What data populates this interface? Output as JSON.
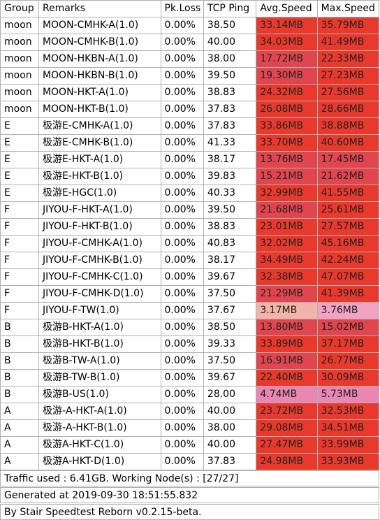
{
  "header": {
    "group": "Group",
    "remarks": "Remarks",
    "loss": "Pk.Loss",
    "ping": "TCP Ping",
    "avg": "Avg.Speed",
    "max": "Max.Speed"
  },
  "rows": [
    {
      "group": "moon",
      "remarks": "MOON-CMHK-A(1.0)",
      "loss": "0.00%",
      "ping": "38.50",
      "avg": "33.14MB",
      "max": "35.79MB"
    },
    {
      "group": "moon",
      "remarks": "MOON-CMHK-B(1.0)",
      "loss": "0.00%",
      "ping": "40.00",
      "avg": "34.03MB",
      "max": "41.49MB"
    },
    {
      "group": "moon",
      "remarks": "MOON-HKBN-A(1.0)",
      "loss": "0.00%",
      "ping": "38.00",
      "avg": "17.72MB",
      "max": "22.33MB"
    },
    {
      "group": "moon",
      "remarks": "MOON-HKBN-B(1.0)",
      "loss": "0.00%",
      "ping": "39.50",
      "avg": "19.30MB",
      "max": "27.23MB"
    },
    {
      "group": "moon",
      "remarks": "MOON-HKT-A(1.0)",
      "loss": "0.00%",
      "ping": "38.83",
      "avg": "24.32MB",
      "max": "27.56MB"
    },
    {
      "group": "moon",
      "remarks": "MOON-HKT-B(1.0)",
      "loss": "0.00%",
      "ping": "37.83",
      "avg": "26.08MB",
      "max": "28.66MB"
    },
    {
      "group": "E",
      "remarks": "极游E-CMHK-A(1.0)",
      "loss": "0.00%",
      "ping": "37.83",
      "avg": "33.86MB",
      "max": "38.88MB"
    },
    {
      "group": "E",
      "remarks": "极游E-CMHK-B(1.0)",
      "loss": "0.00%",
      "ping": "41.33",
      "avg": "33.70MB",
      "max": "40.60MB"
    },
    {
      "group": "E",
      "remarks": "极游E-HKT-A(1.0)",
      "loss": "0.00%",
      "ping": "38.17",
      "avg": "13.76MB",
      "max": "17.45MB"
    },
    {
      "group": "E",
      "remarks": "极游E-HKT-B(1.0)",
      "loss": "0.00%",
      "ping": "39.83",
      "avg": "15.21MB",
      "max": "21.62MB"
    },
    {
      "group": "E",
      "remarks": "极游E-HGC(1.0)",
      "loss": "0.00%",
      "ping": "40.33",
      "avg": "32.99MB",
      "max": "41.55MB"
    },
    {
      "group": "F",
      "remarks": "JIYOU-F-HKT-A(1.0)",
      "loss": "0.00%",
      "ping": "39.50",
      "avg": "21.68MB",
      "max": "25.61MB"
    },
    {
      "group": "F",
      "remarks": "JIYOU-F-HKT-B(1.0)",
      "loss": "0.00%",
      "ping": "38.83",
      "avg": "23.01MB",
      "max": "27.57MB"
    },
    {
      "group": "F",
      "remarks": "JIYOU-F-CMHK-A(1.0)",
      "loss": "0.00%",
      "ping": "40.83",
      "avg": "32.02MB",
      "max": "45.16MB"
    },
    {
      "group": "F",
      "remarks": "JIYOU-F-CMHK-B(1.0)",
      "loss": "0.00%",
      "ping": "38.17",
      "avg": "34.49MB",
      "max": "42.24MB"
    },
    {
      "group": "F",
      "remarks": "JIYOU-F-CMHK-C(1.0)",
      "loss": "0.00%",
      "ping": "39.67",
      "avg": "32.38MB",
      "max": "47.07MB"
    },
    {
      "group": "F",
      "remarks": "JIYOU-F-CMHK-D(1.0)",
      "loss": "0.00%",
      "ping": "37.50",
      "avg": "21.29MB",
      "max": "41.39MB"
    },
    {
      "group": "F",
      "remarks": "JIYOU-F-TW(1.0)",
      "loss": "0.00%",
      "ping": "37.67",
      "avg": "3.17MB",
      "max": "3.76MB"
    },
    {
      "group": "B",
      "remarks": "极游B-HKT-A(1.0)",
      "loss": "0.00%",
      "ping": "38.50",
      "avg": "13.80MB",
      "max": "15.02MB"
    },
    {
      "group": "B",
      "remarks": "极游B-HKT-B(1.0)",
      "loss": "0.00%",
      "ping": "39.33",
      "avg": "33.89MB",
      "max": "37.17MB"
    },
    {
      "group": "B",
      "remarks": "极游B-TW-A(1.0)",
      "loss": "0.00%",
      "ping": "37.50",
      "avg": "16.91MB",
      "max": "26.77MB"
    },
    {
      "group": "B",
      "remarks": "极游B-TW-B(1.0)",
      "loss": "0.00%",
      "ping": "39.67",
      "avg": "22.40MB",
      "max": "30.09MB"
    },
    {
      "group": "B",
      "remarks": "极游B-US(1.0)",
      "loss": "0.00%",
      "ping": "28.00",
      "avg": "4.74MB",
      "max": "5.73MB"
    },
    {
      "group": "A",
      "remarks": "极游-A-HKT-A(1.0)",
      "loss": "0.00%",
      "ping": "40.00",
      "avg": "23.72MB",
      "max": "32.53MB"
    },
    {
      "group": "A",
      "remarks": "极游-A-HKT-B(1.0)",
      "loss": "0.00%",
      "ping": "38.00",
      "avg": "29.08MB",
      "max": "34.51MB"
    },
    {
      "group": "A",
      "remarks": "极游A-HKT-C(1.0)",
      "loss": "0.00%",
      "ping": "40.00",
      "avg": "27.47MB",
      "max": "33.99MB"
    },
    {
      "group": "A",
      "remarks": "极游A-HKT-D(1.0)",
      "loss": "0.00%",
      "ping": "37.83",
      "avg": "24.98MB",
      "max": "33.93MB"
    }
  ],
  "footer": {
    "traffic": "Traffic used : 6.41GB. Working Node(s) : [27/27]",
    "generated": "Generated at 2019-09-30 18:51:55.832",
    "by": "By Stair Speedtest Reborn v0.2.15-beta."
  },
  "colors": {
    "high": "#e8392c",
    "mid": "#e1464f",
    "low_salmon": "#f2b3a8",
    "low_pink": "#f2a3c3",
    "pinkish": "#ea86b2"
  }
}
